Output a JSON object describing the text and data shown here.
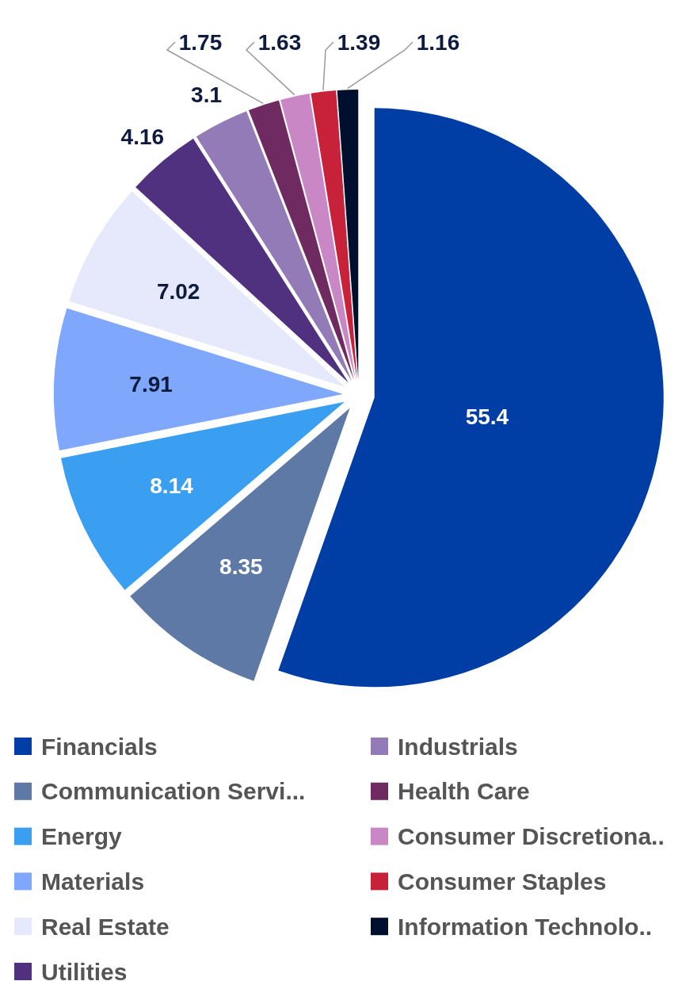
{
  "chart_data": {
    "type": "pie",
    "categories": [
      "Financials",
      "Communication Servi...",
      "Energy",
      "Materials",
      "Real Estate",
      "Utilities",
      "Industrials",
      "Health Care",
      "Consumer Discretiona..",
      "Consumer Staples",
      "Information Technolo.."
    ],
    "values": [
      55.4,
      8.35,
      8.14,
      7.91,
      7.02,
      4.16,
      3.1,
      1.75,
      1.63,
      1.39,
      1.16
    ],
    "colors": [
      "#003da5",
      "#5f79a6",
      "#3a9ff0",
      "#7fa8fc",
      "#e6e8fc",
      "#4f317f",
      "#937bb8",
      "#6e2a61",
      "#c988c5",
      "#c8223a",
      "#000f2e"
    ],
    "data_labels": true,
    "legend": "bottom"
  }
}
